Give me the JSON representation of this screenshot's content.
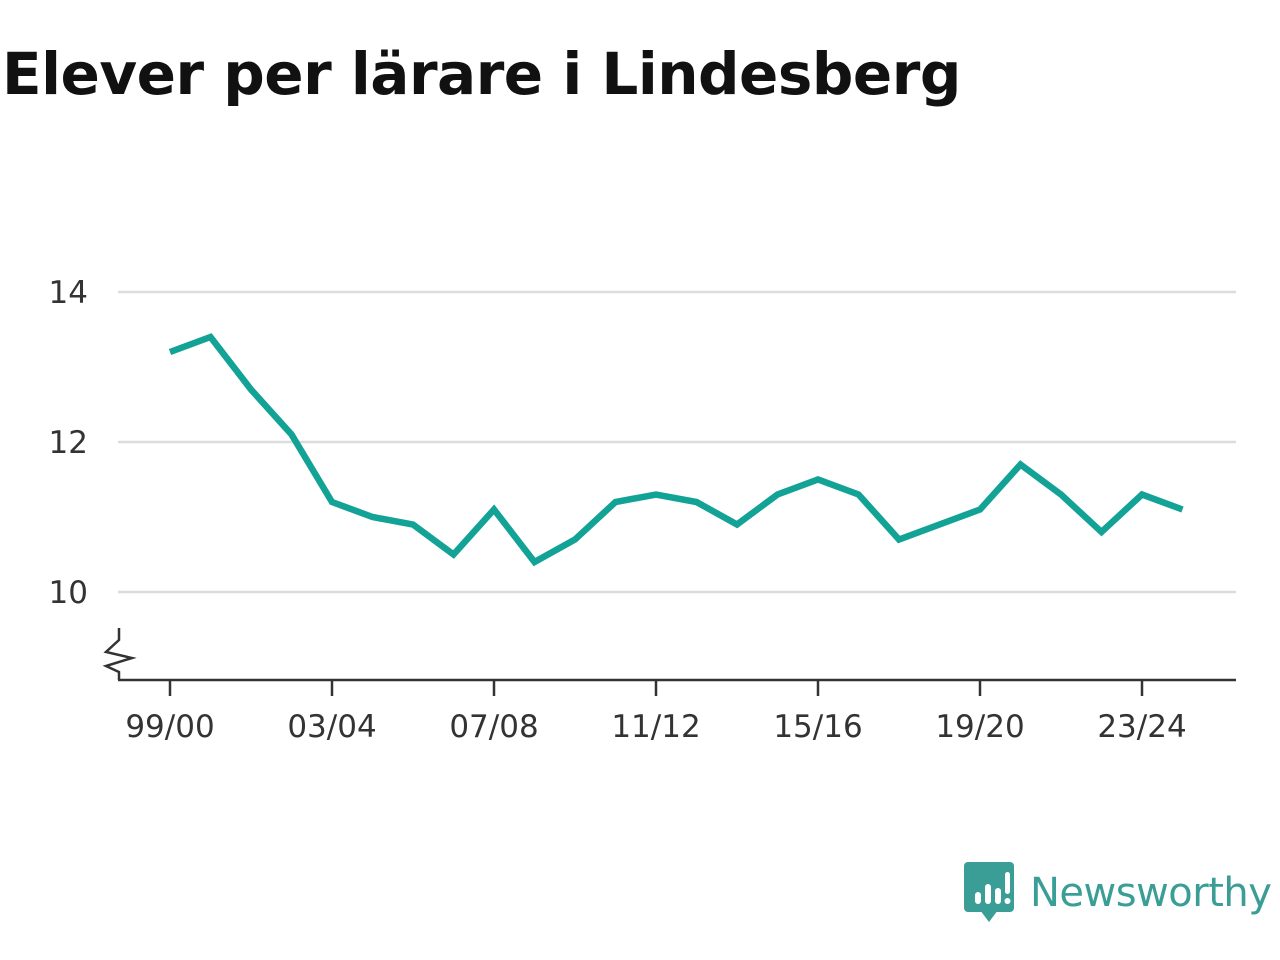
{
  "chart_data": {
    "type": "line",
    "title": "Elever per lärare i Lindesberg",
    "xlabel": "",
    "ylabel": "",
    "x": [
      "99/00",
      "00/01",
      "01/02",
      "02/03",
      "03/04",
      "04/05",
      "05/06",
      "06/07",
      "07/08",
      "08/09",
      "09/10",
      "10/11",
      "11/12",
      "12/13",
      "13/14",
      "14/15",
      "15/16",
      "16/17",
      "17/18",
      "18/19",
      "19/20",
      "20/21",
      "21/22",
      "22/23",
      "23/24",
      "24/25"
    ],
    "x_tick_labels": [
      "99/00",
      "03/04",
      "07/08",
      "11/12",
      "15/16",
      "19/20",
      "23/24"
    ],
    "series": [
      {
        "values": [
          13.2,
          13.4,
          12.7,
          12.1,
          11.2,
          11.0,
          10.9,
          10.5,
          11.1,
          10.4,
          10.7,
          11.2,
          11.3,
          11.2,
          10.9,
          11.3,
          11.5,
          11.3,
          10.7,
          10.9,
          11.1,
          11.7,
          11.3,
          10.8,
          11.3,
          11.1
        ]
      }
    ],
    "y_ticks": [
      10,
      12,
      14
    ],
    "ylim": [
      8.8,
      14
    ],
    "y_axis_break": true,
    "grid": true,
    "line_color": "#13a396"
  },
  "brand": {
    "name": "Newsworthy",
    "color": "#3a9e96"
  }
}
